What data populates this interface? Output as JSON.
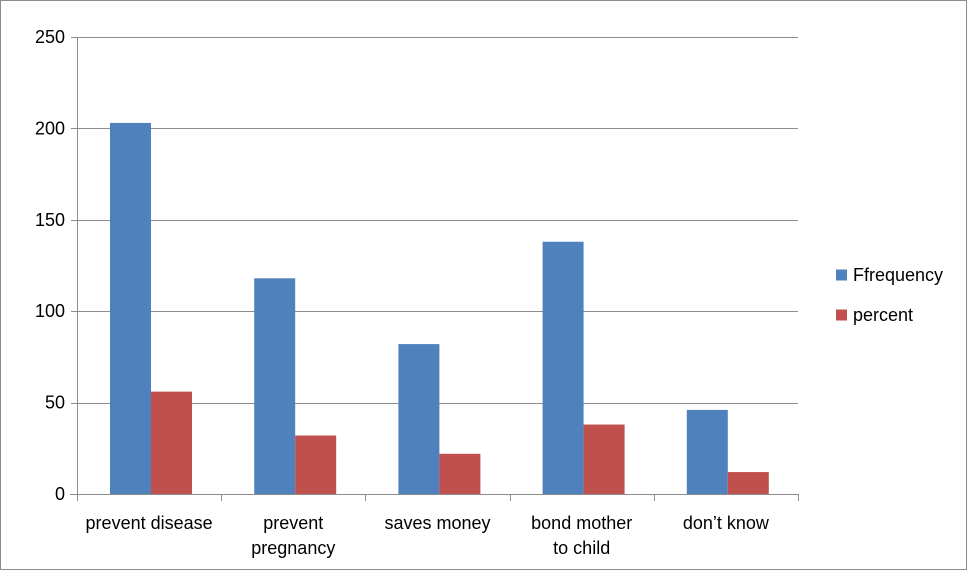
{
  "chart_data": {
    "type": "bar",
    "title": "",
    "xlabel": "",
    "ylabel": "",
    "categories": [
      [
        "prevent disease"
      ],
      [
        "prevent",
        "pregnancy"
      ],
      [
        "saves money"
      ],
      [
        "bond mother",
        "to child"
      ],
      [
        "don’t know"
      ]
    ],
    "series": [
      {
        "name": "Ffrequency",
        "color": "#4f81bd",
        "values": [
          203,
          118,
          82,
          138,
          46
        ]
      },
      {
        "name": "percent",
        "color": "#c0504d",
        "values": [
          56,
          32,
          22,
          38,
          12
        ]
      }
    ],
    "ylim": [
      0,
      250
    ],
    "yticks": [
      0,
      50,
      100,
      150,
      200,
      250
    ],
    "grid": true,
    "legend_position": "right"
  }
}
